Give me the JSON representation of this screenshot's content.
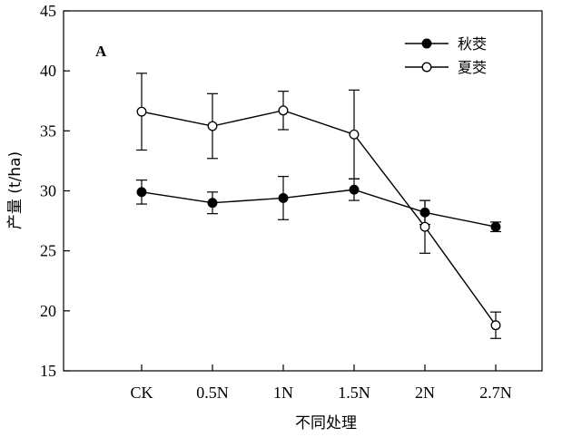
{
  "chart_data": {
    "type": "line",
    "panel_label": "A",
    "xlabel": "不同处理",
    "ylabel": "产量 (t/ha)",
    "categories": [
      "CK",
      "0.5N",
      "1N",
      "1.5N",
      "2N",
      "2.7N"
    ],
    "ylim": [
      15,
      45
    ],
    "yticks": [
      15,
      20,
      25,
      30,
      35,
      40,
      45
    ],
    "grid": false,
    "legend": "top-right",
    "series": [
      {
        "name": "秋茭",
        "marker": "filled-circle",
        "values": [
          29.9,
          29.0,
          29.4,
          30.1,
          28.2,
          27.0
        ],
        "errors": [
          1.0,
          0.9,
          1.8,
          0.9,
          1.0,
          0.4
        ]
      },
      {
        "name": "夏茭",
        "marker": "open-circle",
        "values": [
          36.6,
          35.4,
          36.7,
          34.7,
          27.0,
          18.8
        ],
        "errors": [
          3.2,
          2.7,
          1.6,
          3.7,
          2.2,
          1.1
        ]
      }
    ]
  }
}
